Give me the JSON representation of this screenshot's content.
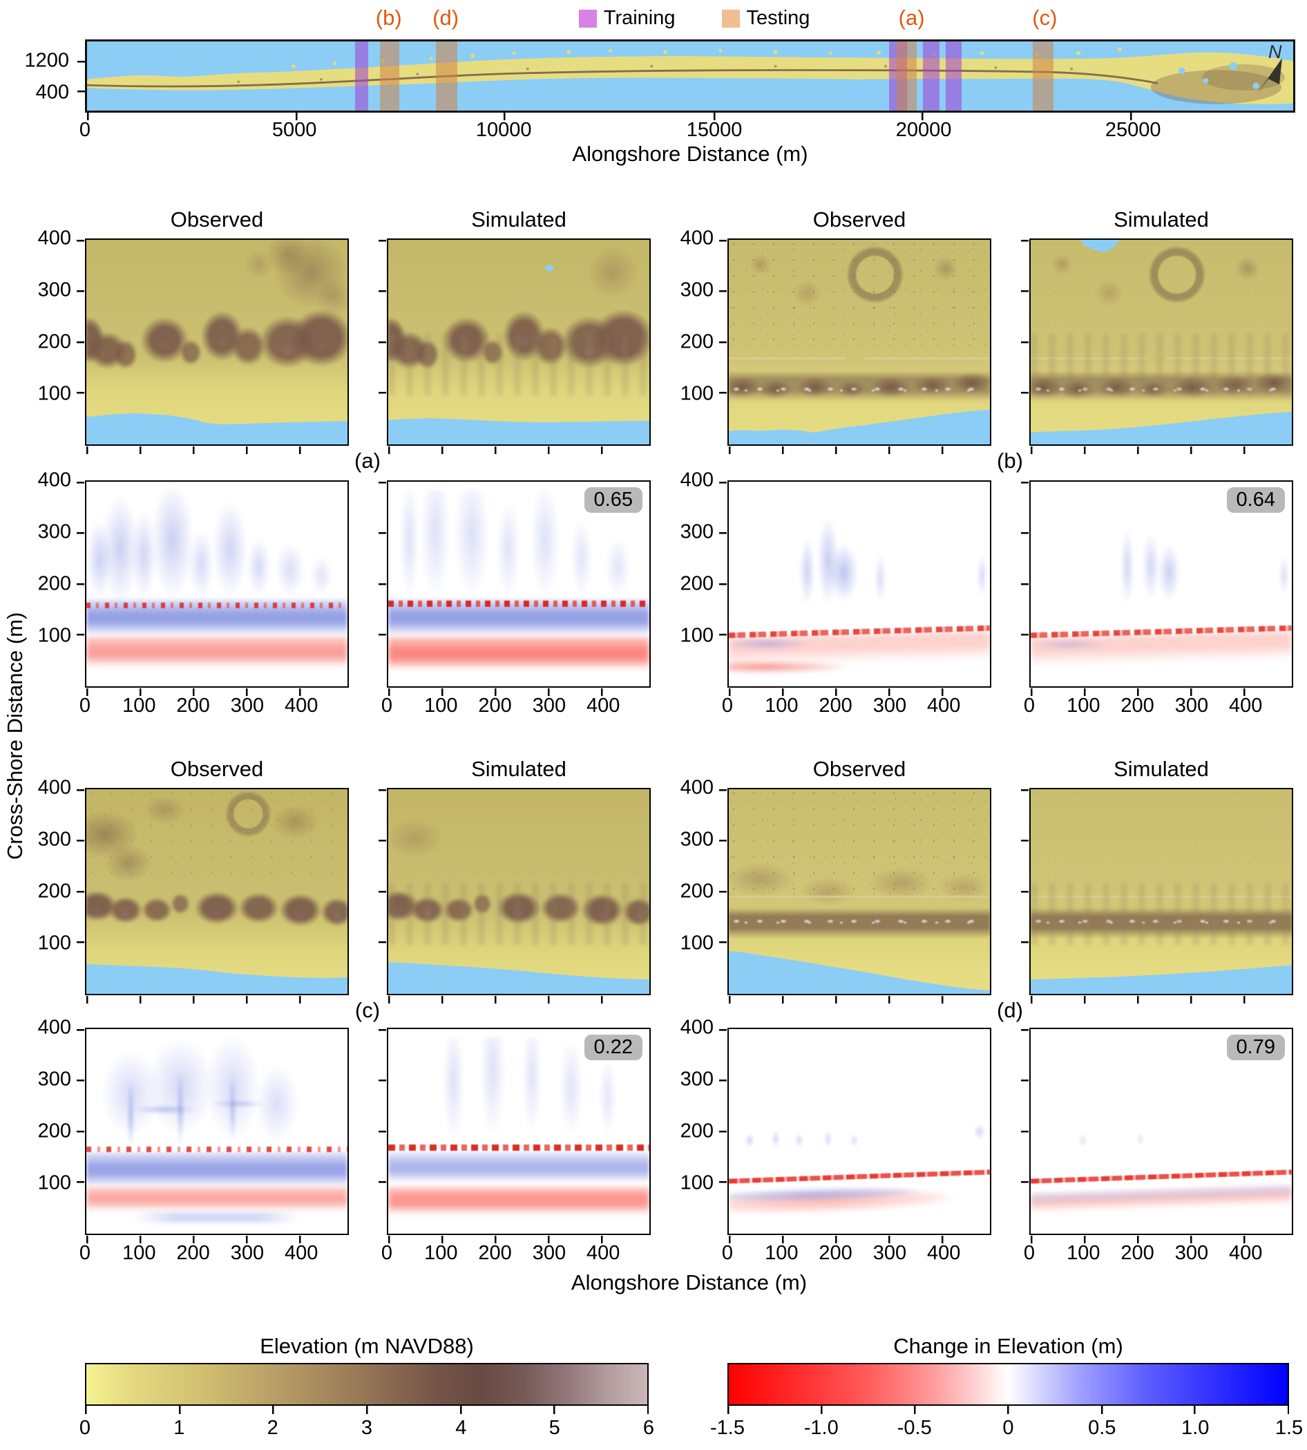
{
  "overview": {
    "xlabel": "Alongshore Distance (m)",
    "x_ticks": [
      "0",
      "5000",
      "10000",
      "15000",
      "20000",
      "25000"
    ],
    "y_ticks": [
      "1200",
      "400"
    ],
    "north_label": "N",
    "marker_color": "#e2570d",
    "legend": {
      "training_label": "Training",
      "testing_label": "Testing",
      "training_color": "#d783e3",
      "testing_color": "#efbe93"
    },
    "markers": [
      {
        "text": "(b)"
      },
      {
        "text": "(d)"
      },
      {
        "text": "(a)"
      },
      {
        "text": "(c)"
      }
    ]
  },
  "panels": {
    "ylabel": "Cross-Shore Distance (m)",
    "xlabel": "Alongshore Distance (m)",
    "y_ticks": [
      "400",
      "300",
      "200",
      "100"
    ],
    "x_ticks": [
      "0",
      "100",
      "200",
      "300",
      "400"
    ],
    "groups": [
      {
        "id": "a",
        "label": "(a)",
        "observed_title": "Observed",
        "simulated_title": "Simulated",
        "score": "0.65"
      },
      {
        "id": "b",
        "label": "(b)",
        "observed_title": "Observed",
        "simulated_title": "Simulated",
        "score": "0.64"
      },
      {
        "id": "c",
        "label": "(c)",
        "observed_title": "Observed",
        "simulated_title": "Simulated",
        "score": "0.22"
      },
      {
        "id": "d",
        "label": "(d)",
        "observed_title": "Observed",
        "simulated_title": "Simulated",
        "score": "0.79"
      }
    ],
    "badge_bg": "#b9b9b9",
    "water_color": "#8ccdf5"
  },
  "colorbars": [
    {
      "title": "Elevation (m NAVD88)",
      "ticks": [
        "0",
        "1",
        "2",
        "3",
        "4",
        "5",
        "6"
      ],
      "colors": [
        "#f6f290",
        "#d2c171",
        "#a2855c",
        "#745347",
        "#684a42",
        "#93797c",
        "#cbb7b8"
      ]
    },
    {
      "title": "Change in Elevation (m)",
      "ticks": [
        "-1.5",
        "-1.0",
        "-0.5",
        "0",
        "0.5",
        "1.0",
        "1.5"
      ],
      "colors": [
        "#ff0000",
        "#ff6e6e",
        "#ffffff",
        "#6e6eff",
        "#0000ff"
      ]
    }
  ],
  "chart_data": {
    "type": "heatmap",
    "overview_map": {
      "xlabel": "Alongshore Distance (m)",
      "x_range_m": [
        0,
        29000
      ],
      "x_tick_values": [
        0,
        5000,
        10000,
        15000,
        20000,
        25000
      ],
      "y_tick_values": [
        1200,
        400
      ],
      "training_bands_m": [
        [
          6400,
          6750
        ],
        [
          19200,
          19640
        ],
        [
          20010,
          20420
        ],
        [
          20550,
          20930
        ]
      ],
      "testing_bands_m": {
        "b": [
          7000,
          7480
        ],
        "d": [
          8340,
          8870
        ],
        "a": [
          19360,
          19860
        ],
        "c": [
          22640,
          23140
        ]
      }
    },
    "site_panels": {
      "groups": [
        "a",
        "b",
        "c",
        "d"
      ],
      "columns_per_group": [
        "Observed",
        "Simulated"
      ],
      "rows_per_group": [
        "elevation",
        "change_in_elevation"
      ],
      "x_range_m": [
        0,
        500
      ],
      "y_range_m": [
        0,
        400
      ],
      "x_tick_values": [
        0,
        100,
        200,
        300,
        400
      ],
      "y_tick_values": [
        400,
        300,
        200,
        100
      ],
      "skill_scores": {
        "a": 0.65,
        "b": 0.64,
        "c": 0.22,
        "d": 0.79
      }
    },
    "colormaps": [
      {
        "label": "Elevation (m NAVD88)",
        "range": [
          0,
          6
        ],
        "style": "yellow-brown-mauve"
      },
      {
        "label": "Change in Elevation (m)",
        "range": [
          -1.5,
          1.5
        ],
        "style": "red-white-blue"
      }
    ]
  }
}
